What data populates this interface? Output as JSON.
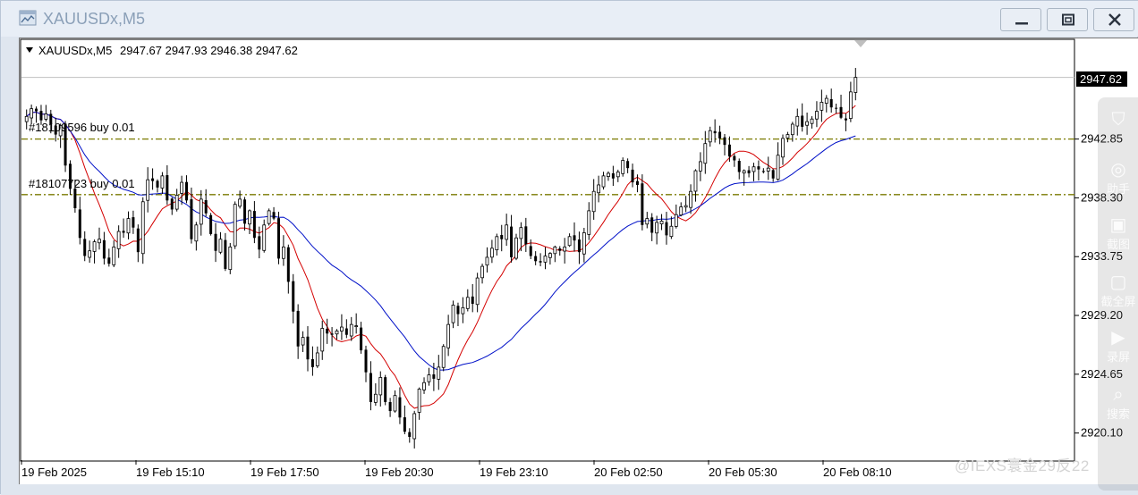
{
  "window": {
    "title": "XAUUSDx,M5",
    "buttons": {
      "minimize": "minimize-icon",
      "restore": "restore-icon",
      "close": "close-icon"
    }
  },
  "chart": {
    "header": "XAUUSDx,M5",
    "ohlc": "2947.67 2947.93 2946.38 2947.62",
    "current_price": "2947.62",
    "order_labels": [
      "#18109596 buy 0.01",
      "#18107723 buy 0.01"
    ]
  },
  "side_panel": {
    "items": [
      {
        "icon": "shield-icon",
        "label": ""
      },
      {
        "icon": "swirl-icon",
        "label": "助手"
      },
      {
        "icon": "camera-icon",
        "label": "截图"
      },
      {
        "icon": "screen-icon",
        "label": "截全屏"
      },
      {
        "icon": "video-icon",
        "label": "录屏"
      },
      {
        "icon": "search-icon",
        "label": "搜索"
      }
    ]
  },
  "watermark": "@IEXS寰金29反22",
  "colors": {
    "ma_fast": "#d40000",
    "ma_slow": "#0010c8",
    "order_line": "#7a7a00",
    "price_box": "#000000"
  },
  "chart_data": {
    "type": "candlestick",
    "symbol": "XAUUSDx",
    "timeframe": "M5",
    "ylim": [
      2918.0,
      2950.5
    ],
    "y_ticks": [
      "2947.62",
      "2942.85",
      "2938.30",
      "2933.75",
      "2929.20",
      "2924.65",
      "2920.10"
    ],
    "y_tick_values": [
      2947.62,
      2942.85,
      2938.3,
      2933.75,
      2929.2,
      2924.65,
      2920.1
    ],
    "x_ticks": [
      "19 Feb 2025",
      "19 Feb 15:10",
      "19 Feb 17:50",
      "19 Feb 20:30",
      "19 Feb 23:10",
      "20 Feb 02:50",
      "20 Feb 05:30",
      "20 Feb 08:10"
    ],
    "order_levels": [
      2942.85,
      2938.55
    ],
    "close_series": [
      2944.6,
      2945.2,
      2945.0,
      2944.3,
      2944.8,
      2944.0,
      2943.2,
      2943.9,
      2940.8,
      2939.0,
      2937.5,
      2935.2,
      2933.8,
      2934.2,
      2934.9,
      2935.1,
      2933.6,
      2933.2,
      2934.5,
      2935.7,
      2935.6,
      2936.7,
      2936.0,
      2934.1,
      2938.0,
      2939.7,
      2939.6,
      2939.1,
      2940.0,
      2938.1,
      2937.4,
      2938.5,
      2939.5,
      2938.1,
      2935.1,
      2936.2,
      2938.2,
      2937.1,
      2935.5,
      2934.2,
      2935.1,
      2932.8,
      2934.5,
      2937.8,
      2938.2,
      2936.3,
      2937.3,
      2935.2,
      2934.3,
      2936.2,
      2937.3,
      2936.7,
      2933.6,
      2934.5,
      2931.8,
      2929.5,
      2926.8,
      2927.5,
      2925.8,
      2925.2,
      2926.3,
      2928.2,
      2927.8,
      2927.7,
      2928.0,
      2928.3,
      2927.7,
      2928.5,
      2928.4,
      2926.5,
      2924.8,
      2922.5,
      2923.1,
      2924.4,
      2922.5,
      2921.8,
      2923.0,
      2921.3,
      2920.2,
      2919.8,
      2921.6,
      2923.5,
      2924.0,
      2924.6,
      2924.3,
      2925.2,
      2926.8,
      2928.5,
      2930.0,
      2929.3,
      2929.8,
      2930.6,
      2930.1,
      2932.1,
      2933.0,
      2933.7,
      2934.4,
      2935.3,
      2935.1,
      2936.2,
      2933.7,
      2935.2,
      2936.0,
      2934.7,
      2933.8,
      2933.4,
      2933.3,
      2933.8,
      2934.0,
      2934.5,
      2934.2,
      2934.5,
      2935.3,
      2935.0,
      2934.1,
      2935.6,
      2937.3,
      2938.8,
      2939.3,
      2940.0,
      2940.2,
      2939.8,
      2940.3,
      2941.2,
      2940.6,
      2939.5,
      2939.3,
      2936.2,
      2936.7,
      2935.6,
      2936.4,
      2936.5,
      2935.4,
      2936.1,
      2937.0,
      2937.6,
      2937.7,
      2938.8,
      2940.4,
      2941.1,
      2942.5,
      2943.5,
      2943.3,
      2942.9,
      2942.4,
      2941.5,
      2941.2,
      2940.3,
      2940.4,
      2940.2,
      2940.7,
      2940.5,
      2940.3,
      2940.6,
      2939.8,
      2941.6,
      2942.9,
      2943.2,
      2944.0,
      2944.6,
      2943.8,
      2944.2,
      2944.4,
      2945.0,
      2945.7,
      2946.0,
      2945.3,
      2945.2,
      2944.5,
      2944.3,
      2946.5,
      2947.62
    ]
  }
}
